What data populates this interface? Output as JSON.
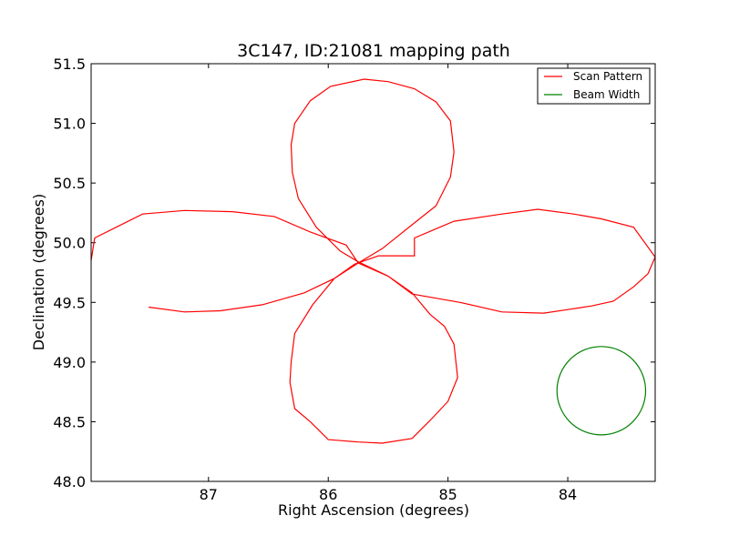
{
  "chart_data": {
    "type": "line",
    "title": "3C147, ID:21081 mapping path",
    "xlabel": "Right Ascension (degrees)",
    "ylabel": "Declination (degrees)",
    "xlim": [
      87.98,
      83.27
    ],
    "ylim": [
      48.0,
      51.5
    ],
    "x_inverted": true,
    "xticks": [
      87,
      86,
      85,
      84
    ],
    "yticks": [
      48.0,
      48.5,
      49.0,
      49.5,
      50.0,
      50.5,
      51.0,
      51.5
    ],
    "xtick_labels": [
      "87",
      "86",
      "85",
      "84"
    ],
    "ytick_labels": [
      "48.0",
      "48.5",
      "49.0",
      "49.5",
      "50.0",
      "50.5",
      "51.0",
      "51.5"
    ],
    "grid": false,
    "legend": {
      "position": "top-right"
    },
    "series": [
      {
        "name": "Scan Pattern",
        "color": "#ff0000",
        "points": [
          [
            87.5,
            49.46
          ],
          [
            87.2,
            49.42
          ],
          [
            86.9,
            49.43
          ],
          [
            86.55,
            49.48
          ],
          [
            86.2,
            49.58
          ],
          [
            85.95,
            49.7
          ],
          [
            85.75,
            49.83
          ],
          [
            85.55,
            49.95
          ],
          [
            85.3,
            50.15
          ],
          [
            85.1,
            50.31
          ],
          [
            84.98,
            50.55
          ],
          [
            84.95,
            50.76
          ],
          [
            84.98,
            51.02
          ],
          [
            85.1,
            51.18
          ],
          [
            85.28,
            51.29
          ],
          [
            85.5,
            51.35
          ],
          [
            85.7,
            51.37
          ],
          [
            85.98,
            51.31
          ],
          [
            86.15,
            51.19
          ],
          [
            86.28,
            51.0
          ],
          [
            86.31,
            50.82
          ],
          [
            86.3,
            50.59
          ],
          [
            86.25,
            50.37
          ],
          [
            86.1,
            50.13
          ],
          [
            85.9,
            49.93
          ],
          [
            85.75,
            49.84
          ],
          [
            85.5,
            49.72
          ],
          [
            85.3,
            49.58
          ],
          [
            85.15,
            49.4
          ],
          [
            85.03,
            49.3
          ],
          [
            84.95,
            49.15
          ],
          [
            84.92,
            48.87
          ],
          [
            85.0,
            48.67
          ],
          [
            85.15,
            48.51
          ],
          [
            85.3,
            48.36
          ],
          [
            85.55,
            48.32
          ],
          [
            85.75,
            48.33
          ],
          [
            86.0,
            48.35
          ],
          [
            86.15,
            48.5
          ],
          [
            86.28,
            48.61
          ],
          [
            86.32,
            48.83
          ],
          [
            86.31,
            49.0
          ],
          [
            86.28,
            49.24
          ],
          [
            86.13,
            49.48
          ],
          [
            85.95,
            49.7
          ],
          [
            85.78,
            49.82
          ],
          [
            85.58,
            49.89
          ],
          [
            85.28,
            49.89
          ],
          [
            85.28,
            50.04
          ],
          [
            84.95,
            50.18
          ],
          [
            84.55,
            50.24
          ],
          [
            84.25,
            50.28
          ],
          [
            83.95,
            50.24
          ],
          [
            83.72,
            50.2
          ],
          [
            83.45,
            50.13
          ],
          [
            83.27,
            49.88
          ],
          [
            83.33,
            49.74
          ],
          [
            83.45,
            49.63
          ],
          [
            83.62,
            49.51
          ],
          [
            83.8,
            49.47
          ],
          [
            84.0,
            49.44
          ],
          [
            84.2,
            49.41
          ],
          [
            84.55,
            49.42
          ],
          [
            84.9,
            49.5
          ],
          [
            85.3,
            49.57
          ],
          [
            85.5,
            49.72
          ],
          [
            85.75,
            49.83
          ],
          [
            85.85,
            49.98
          ],
          [
            86.15,
            50.09
          ],
          [
            86.45,
            50.22
          ],
          [
            86.8,
            50.26
          ],
          [
            87.2,
            50.27
          ],
          [
            87.55,
            50.24
          ],
          [
            87.95,
            50.04
          ],
          [
            87.98,
            49.85
          ]
        ]
      },
      {
        "name": "Beam Width",
        "color": "#008000",
        "shape": "circle",
        "center": [
          83.72,
          48.76
        ],
        "radius_deg": 0.37
      }
    ]
  }
}
